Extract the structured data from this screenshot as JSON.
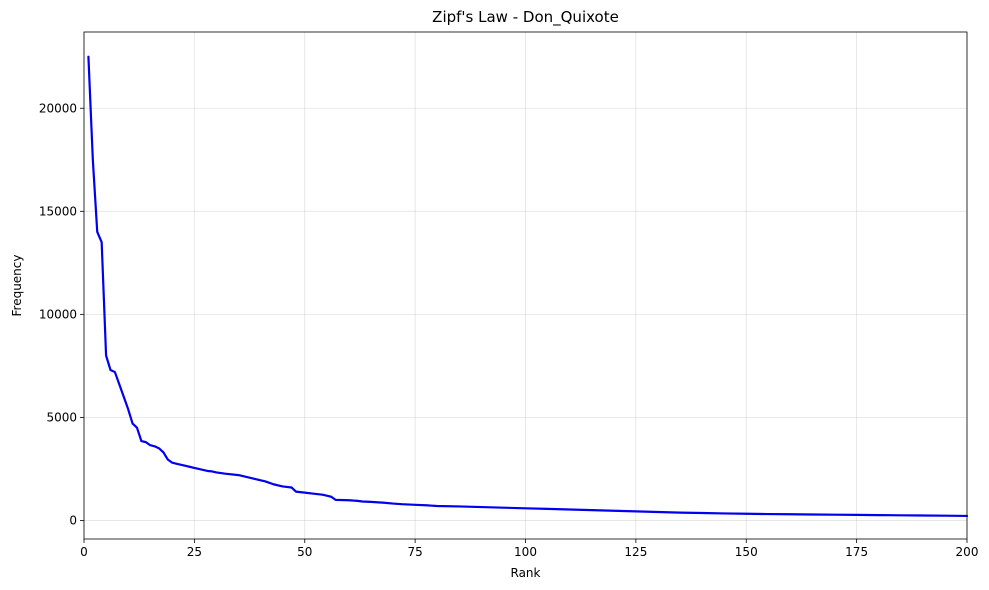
{
  "chart_data": {
    "type": "line",
    "title": "Zipf's Law - Don_Quixote",
    "xlabel": "Rank",
    "ylabel": "Frequency",
    "xlim": [
      0,
      200
    ],
    "ylim": [
      -900,
      23700
    ],
    "xticks": [
      0,
      25,
      50,
      75,
      100,
      125,
      150,
      175,
      200
    ],
    "yticks": [
      0,
      5000,
      10000,
      15000,
      20000
    ],
    "grid": true,
    "line_color": "#0000ee",
    "series": [
      {
        "x": [
          1,
          2,
          3,
          4,
          5,
          6,
          7,
          8,
          9,
          10,
          11,
          12,
          13,
          14,
          15,
          16,
          17,
          18,
          19,
          20,
          21,
          22,
          23,
          24,
          25,
          26,
          27,
          28,
          29,
          30,
          32,
          35,
          38,
          40,
          41,
          43,
          45,
          47,
          48,
          50,
          52,
          54,
          55,
          56,
          57,
          60,
          62,
          63,
          65,
          68,
          70,
          72,
          75,
          78,
          80,
          85,
          90,
          95,
          100,
          105,
          110,
          115,
          120,
          125,
          130,
          135,
          140,
          145,
          150,
          155,
          160,
          165,
          170,
          175,
          180,
          185,
          190,
          195,
          200
        ],
        "y": [
          22500,
          17500,
          14000,
          13500,
          8000,
          7300,
          7200,
          6600,
          6000,
          5400,
          4700,
          4500,
          3850,
          3800,
          3650,
          3600,
          3500,
          3300,
          2950,
          2800,
          2750,
          2700,
          2650,
          2600,
          2550,
          2500,
          2450,
          2400,
          2380,
          2330,
          2270,
          2200,
          2050,
          1950,
          1900,
          1750,
          1650,
          1600,
          1400,
          1350,
          1300,
          1250,
          1200,
          1150,
          1000,
          980,
          950,
          920,
          900,
          860,
          820,
          790,
          760,
          730,
          700,
          680,
          650,
          620,
          590,
          560,
          530,
          500,
          470,
          440,
          410,
          380,
          360,
          340,
          325,
          310,
          300,
          290,
          280,
          270,
          260,
          250,
          240,
          230,
          220
        ]
      }
    ]
  }
}
